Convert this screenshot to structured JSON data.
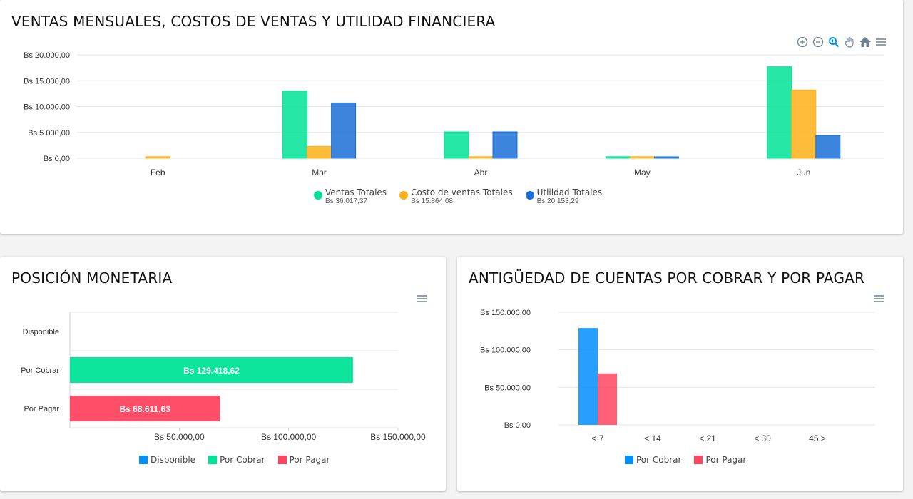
{
  "colors": {
    "green": "#00e396",
    "yellow": "#feb019",
    "blue": "#1a73e8",
    "blue2": "#2e7fd6",
    "red": "#ff4560",
    "blue_bar": "#008ffb",
    "grid": "#e6e6e6",
    "axis_text": "#333333"
  },
  "icons": {
    "zoom_in": "zoom-in-icon",
    "zoom_out": "zoom-out-icon",
    "zoom_select": "magnifier-icon",
    "pan": "hand-icon",
    "reset": "home-icon",
    "menu": "menu-icon"
  },
  "sales_card": {
    "title": "VENTAS MENSUALES, COSTOS DE VENTAS Y UTILIDAD FINANCIERA"
  },
  "position_card": {
    "title": "POSICIÓN MONETARIA"
  },
  "aging_card": {
    "title": "ANTIGÜEDAD DE CUENTAS POR COBRAR Y POR PAGAR"
  },
  "chart_data": [
    {
      "type": "bar",
      "title": "VENTAS MENSUALES, COSTOS DE VENTAS Y UTILIDAD FINANCIERA",
      "categories": [
        "Feb",
        "Mar",
        "Abr",
        "May",
        "Jun"
      ],
      "ylim": [
        0,
        20000
      ],
      "yticks": [
        "Bs 0,00",
        "Bs 5.000,00",
        "Bs 10.000,00",
        "Bs 15.000,00",
        "Bs 20.000,00"
      ],
      "grid": true,
      "legend_position": "bottom",
      "series": [
        {
          "name": "Ventas Totales",
          "total": "Bs 36.017,37",
          "color": "#00e396",
          "values": [
            0,
            13000,
            5100,
            300,
            17700
          ]
        },
        {
          "name": "Costo de ventas Totales",
          "total": "Bs 15.864,08",
          "color": "#feb019",
          "values": [
            300,
            2300,
            300,
            300,
            13200
          ]
        },
        {
          "name": "Utilidad Totales",
          "total": "Bs 20.153,29",
          "color": "#1a6fd6",
          "values": [
            0,
            10700,
            5100,
            100,
            4400
          ]
        }
      ]
    },
    {
      "type": "bar",
      "orientation": "horizontal",
      "title": "POSICIÓN MONETARIA",
      "categories": [
        "Disponible",
        "Por Cobrar",
        "Por Pagar"
      ],
      "xlim": [
        0,
        150000
      ],
      "xticks": [
        "Bs 50.000,00",
        "Bs 100.000,00",
        "Bs 150.000,00"
      ],
      "legend_position": "bottom",
      "series": [
        {
          "name": "Disponible",
          "color": "#008ffb",
          "values": [
            0,
            0,
            0
          ]
        },
        {
          "name": "Por Cobrar",
          "color": "#00e396",
          "values": [
            0,
            129418.62,
            0
          ]
        },
        {
          "name": "Por Pagar",
          "color": "#ff4560",
          "values": [
            0,
            0,
            68611.63
          ]
        }
      ],
      "data_labels": [
        "",
        "Bs 129.418,62",
        "Bs 68.611,63"
      ]
    },
    {
      "type": "bar",
      "title": "ANTIGÜEDAD DE CUENTAS POR COBRAR Y POR PAGAR",
      "categories": [
        "< 7",
        "< 14",
        "< 21",
        "< 30",
        "45 >"
      ],
      "ylim": [
        0,
        150000
      ],
      "yticks": [
        "Bs 0,00",
        "Bs 50.000,00",
        "Bs 100.000,00",
        "Bs 150.000,00"
      ],
      "grid": true,
      "legend_position": "bottom",
      "series": [
        {
          "name": "Por Cobrar",
          "color": "#008ffb",
          "values": [
            129000,
            0,
            0,
            0,
            0
          ]
        },
        {
          "name": "Por Pagar",
          "color": "#ff4560",
          "values": [
            68600,
            0,
            0,
            0,
            0
          ]
        }
      ]
    }
  ]
}
